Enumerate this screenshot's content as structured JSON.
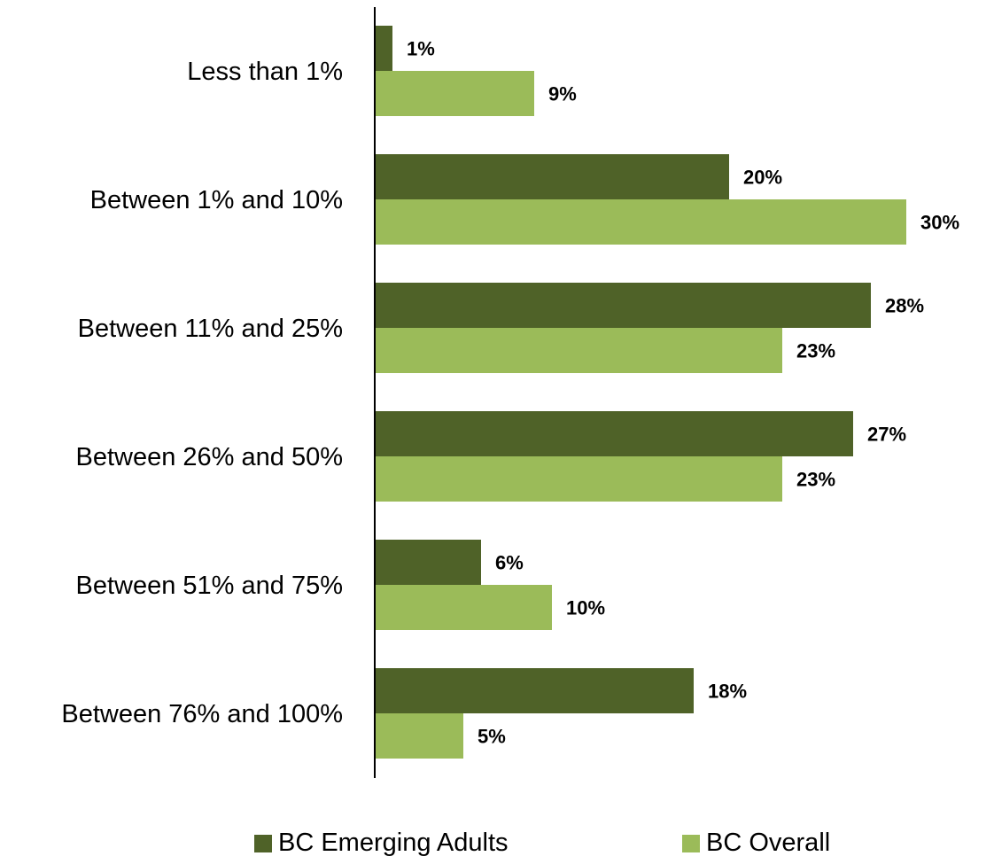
{
  "chart_data": {
    "type": "bar",
    "orientation": "horizontal",
    "categories": [
      "Less than 1%",
      "Between 1% and 10%",
      "Between 11% and 25%",
      "Between 26% and 50%",
      "Between 51% and 75%",
      "Between 76% and 100%"
    ],
    "series": [
      {
        "name": "BC Emerging Adults",
        "values": [
          1,
          20,
          28,
          27,
          6,
          18
        ],
        "labels": [
          "1%",
          "20%",
          "28%",
          "27%",
          "6%",
          "18%"
        ],
        "color": "#4f6228"
      },
      {
        "name": "BC Overall",
        "values": [
          9,
          30,
          23,
          23,
          10,
          5
        ],
        "labels": [
          "9%",
          "30%",
          "23%",
          "23%",
          "10%",
          "5%"
        ],
        "color": "#9bbb59"
      }
    ],
    "xlim": [
      0,
      30
    ],
    "grid": false,
    "legend_position": "bottom"
  }
}
